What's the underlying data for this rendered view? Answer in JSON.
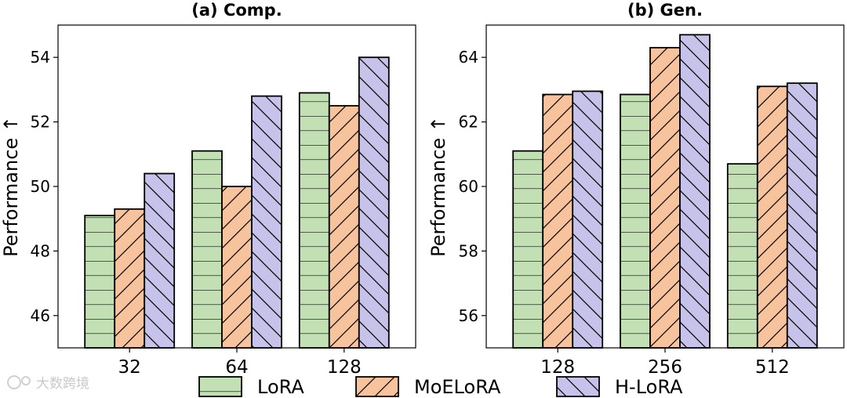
{
  "chart_data": [
    {
      "type": "bar",
      "title": "(a) Comp.",
      "categories": [
        "32",
        "64",
        "128"
      ],
      "ylabel": "Performance ↑",
      "ylim": [
        45,
        55
      ],
      "yticks": [
        "46",
        "48",
        "50",
        "52",
        "54"
      ],
      "series": [
        {
          "name": "LoRA",
          "values": [
            49.1,
            51.1,
            52.9
          ]
        },
        {
          "name": "MoELoRA",
          "values": [
            49.3,
            50.0,
            52.5
          ]
        },
        {
          "name": "H-LoRA",
          "values": [
            50.4,
            52.8,
            54.0
          ]
        }
      ]
    },
    {
      "type": "bar",
      "title": "(b) Gen.",
      "categories": [
        "128",
        "256",
        "512"
      ],
      "ylabel": "Performance ↑",
      "ylim": [
        55,
        65
      ],
      "yticks": [
        "56",
        "58",
        "60",
        "62",
        "64"
      ],
      "series": [
        {
          "name": "LoRA",
          "values": [
            61.1,
            62.85,
            60.7
          ]
        },
        {
          "name": "MoELoRA",
          "values": [
            62.85,
            64.3,
            63.1
          ]
        },
        {
          "name": "H-LoRA",
          "values": [
            62.95,
            64.7,
            63.2
          ]
        }
      ]
    }
  ],
  "legend": {
    "items": [
      {
        "label": "LoRA",
        "color": "#c2e0b4",
        "pattern": "horizontal"
      },
      {
        "label": "MoELoRA",
        "color": "#f6c39d",
        "pattern": "forward-diagonal"
      },
      {
        "label": "H-LoRA",
        "color": "#c6c2ea",
        "pattern": "back-diagonal"
      }
    ],
    "placement": "bottom-center"
  },
  "watermark": {
    "text": "大数跨境"
  }
}
